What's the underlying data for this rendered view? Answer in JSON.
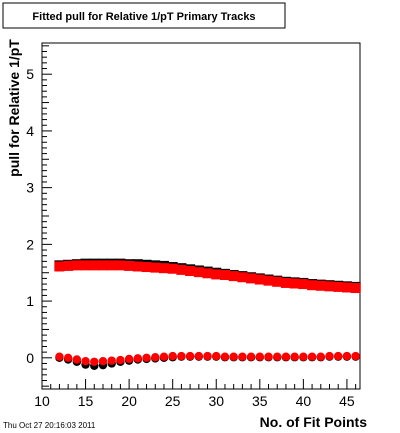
{
  "chart_data": {
    "type": "scatter",
    "title": "Fitted pull for Relative 1/pT Primary Tracks",
    "xlabel": "No. of Fit Points",
    "ylabel": "pull for Relative 1/pT",
    "xlim": [
      10,
      46.5
    ],
    "ylim": [
      -0.55,
      5.55
    ],
    "xticks": [
      10,
      15,
      20,
      25,
      30,
      35,
      40,
      45
    ],
    "yticks": [
      0,
      1,
      2,
      3,
      4,
      5
    ],
    "grid": false,
    "legend": "none",
    "timestamp": "Thu Oct 27 20:16:03 2011",
    "x": [
      12,
      13,
      14,
      15,
      16,
      17,
      18,
      19,
      20,
      21,
      22,
      23,
      24,
      25,
      26,
      27,
      28,
      29,
      30,
      31,
      32,
      33,
      34,
      35,
      36,
      37,
      38,
      39,
      40,
      41,
      42,
      43,
      44,
      45,
      46
    ],
    "series": [
      {
        "color": "#000000",
        "marker": "square",
        "values": [
          1.63,
          1.64,
          1.65,
          1.66,
          1.66,
          1.66,
          1.66,
          1.66,
          1.65,
          1.65,
          1.64,
          1.63,
          1.62,
          1.6,
          1.58,
          1.56,
          1.54,
          1.52,
          1.5,
          1.48,
          1.46,
          1.44,
          1.42,
          1.4,
          1.38,
          1.36,
          1.34,
          1.33,
          1.32,
          1.3,
          1.29,
          1.28,
          1.27,
          1.26,
          1.25
        ]
      },
      {
        "color": "#ff0000",
        "marker": "square",
        "values": [
          1.61,
          1.62,
          1.63,
          1.63,
          1.63,
          1.63,
          1.63,
          1.63,
          1.62,
          1.61,
          1.6,
          1.59,
          1.58,
          1.57,
          1.55,
          1.53,
          1.51,
          1.49,
          1.47,
          1.46,
          1.44,
          1.42,
          1.4,
          1.38,
          1.36,
          1.34,
          1.32,
          1.31,
          1.3,
          1.28,
          1.27,
          1.26,
          1.25,
          1.24,
          1.23
        ]
      },
      {
        "color": "#000000",
        "marker": "circle",
        "values": [
          0.0,
          -0.03,
          -0.07,
          -0.12,
          -0.14,
          -0.13,
          -0.1,
          -0.07,
          -0.05,
          -0.03,
          -0.02,
          -0.01,
          0.0,
          0.01,
          0.02,
          0.02,
          0.02,
          0.02,
          0.02,
          0.01,
          0.01,
          0.01,
          0.01,
          0.01,
          0.01,
          0.01,
          0.01,
          0.01,
          0.01,
          0.01,
          0.01,
          0.02,
          0.02,
          0.02,
          0.02
        ]
      },
      {
        "color": "#ff0000",
        "marker": "circle",
        "values": [
          0.02,
          0.0,
          -0.03,
          -0.06,
          -0.07,
          -0.06,
          -0.05,
          -0.04,
          -0.02,
          -0.01,
          0.0,
          0.01,
          0.02,
          0.03,
          0.03,
          0.03,
          0.03,
          0.03,
          0.03,
          0.02,
          0.02,
          0.02,
          0.02,
          0.02,
          0.02,
          0.02,
          0.02,
          0.02,
          0.02,
          0.02,
          0.02,
          0.03,
          0.03,
          0.03,
          0.03
        ]
      }
    ]
  }
}
